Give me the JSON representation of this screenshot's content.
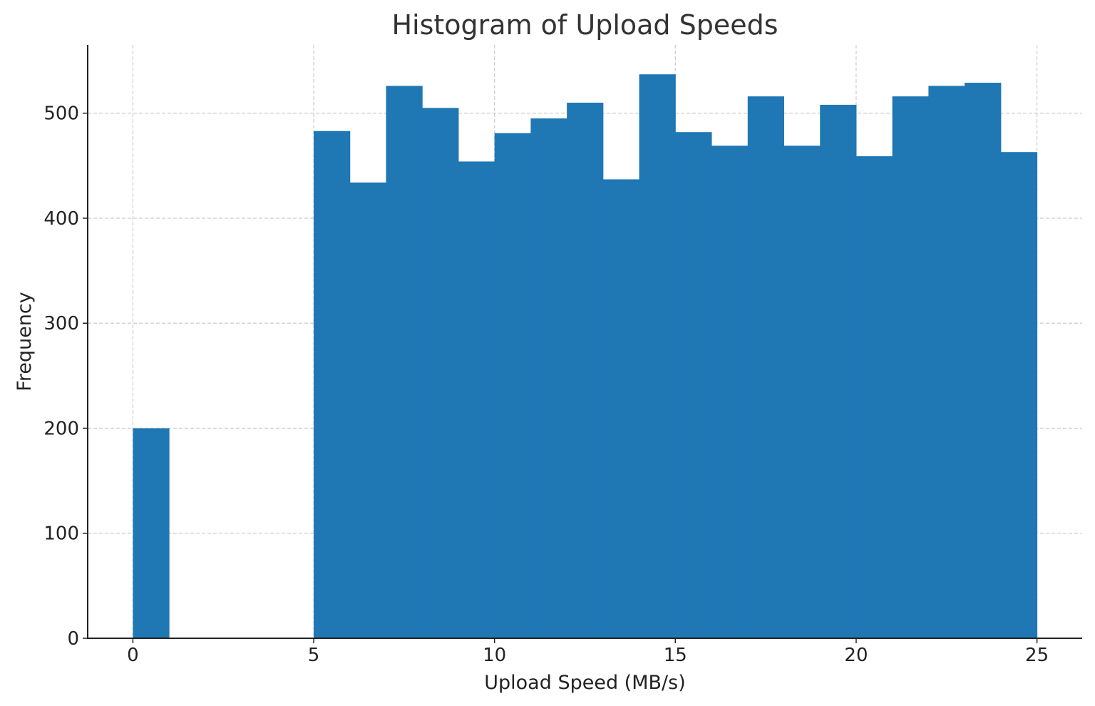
{
  "chart_data": {
    "type": "bar",
    "title": "Histogram of Upload Speeds",
    "xlabel": "Upload Speed (MB/s)",
    "ylabel": "Frequency",
    "xlim": [
      -1.25,
      26.25
    ],
    "ylim": [
      0,
      565
    ],
    "xticks": [
      0,
      5,
      10,
      15,
      20,
      25
    ],
    "yticks": [
      0,
      100,
      200,
      300,
      400,
      500
    ],
    "grid": true,
    "bar_color": "#1f77b4",
    "bins": [
      {
        "x0": 0,
        "x1": 1,
        "value": 200
      },
      {
        "x0": 5,
        "x1": 6,
        "value": 483
      },
      {
        "x0": 6,
        "x1": 7,
        "value": 434
      },
      {
        "x0": 7,
        "x1": 8,
        "value": 526
      },
      {
        "x0": 8,
        "x1": 9,
        "value": 505
      },
      {
        "x0": 9,
        "x1": 10,
        "value": 454
      },
      {
        "x0": 10,
        "x1": 11,
        "value": 481
      },
      {
        "x0": 11,
        "x1": 12,
        "value": 495
      },
      {
        "x0": 12,
        "x1": 13,
        "value": 510
      },
      {
        "x0": 13,
        "x1": 14,
        "value": 437
      },
      {
        "x0": 14,
        "x1": 15,
        "value": 537
      },
      {
        "x0": 15,
        "x1": 16,
        "value": 482
      },
      {
        "x0": 16,
        "x1": 17,
        "value": 469
      },
      {
        "x0": 17,
        "x1": 18,
        "value": 516
      },
      {
        "x0": 18,
        "x1": 19,
        "value": 469
      },
      {
        "x0": 19,
        "x1": 20,
        "value": 508
      },
      {
        "x0": 20,
        "x1": 21,
        "value": 459
      },
      {
        "x0": 21,
        "x1": 22,
        "value": 516
      },
      {
        "x0": 22,
        "x1": 23,
        "value": 526
      },
      {
        "x0": 23,
        "x1": 24,
        "value": 529
      },
      {
        "x0": 24,
        "x1": 25,
        "value": 463
      }
    ]
  }
}
